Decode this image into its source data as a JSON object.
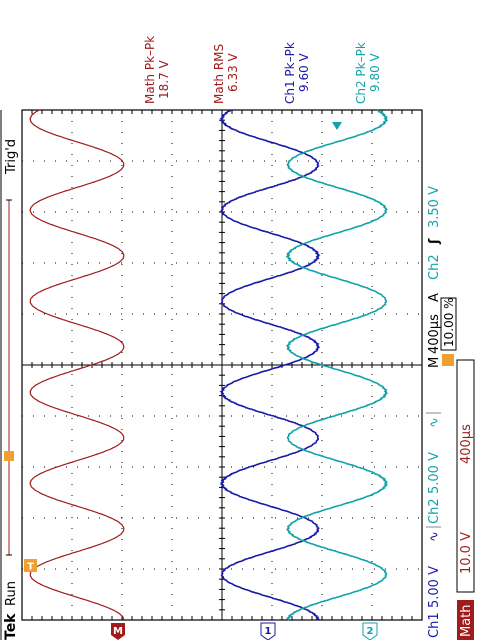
{
  "header": {
    "brand": "Tek",
    "run_state": "Run",
    "trigger_status": "Trig'd"
  },
  "measurements": [
    {
      "label": "Math Pk–Pk",
      "value": "18.7 V",
      "color": "#a01c1c"
    },
    {
      "label": "Math RMS",
      "value": "6.33 V",
      "color": "#a01c1c"
    },
    {
      "label": "Ch1 Pk–Pk",
      "value": "9.60 V",
      "color": "#1a1aa8"
    },
    {
      "label": "Ch2 Pk–Pk",
      "value": "9.80 V",
      "color": "#11a3a8"
    }
  ],
  "status_bar": {
    "ch1_label": "Ch1",
    "ch1_scale": "5.00 V",
    "ch2_label": "Ch2",
    "ch2_scale": "5.00 V",
    "coupling_symbol": "∿",
    "timebase_mode": "M",
    "timebase": "400µs",
    "trigger_mode": "A",
    "trigger_source": "Ch2",
    "trigger_slope": "ʃ",
    "trigger_level": "3.50 V",
    "trigger_position": "10.00 %"
  },
  "math_bar": {
    "label": "Math",
    "scale": "10.0 V",
    "timebase": "400µs"
  },
  "markers": {
    "math": "M",
    "ch1": "1",
    "ch2": "2",
    "trigger": "T"
  },
  "colors": {
    "math": "#a01c1c",
    "ch1": "#1a1aa8",
    "ch2": "#11a3a8",
    "trigger": "#f0a030",
    "grid": "#000000"
  },
  "chart_data": {
    "type": "line",
    "x_divisions": 10,
    "y_divisions": 8,
    "series": [
      {
        "name": "Math",
        "cycles": 5.6,
        "amplitude_div": 0.935,
        "offset_div": -2.9,
        "phase": 0.0
      },
      {
        "name": "Ch1",
        "cycles": 5.6,
        "amplitude_div": 0.96,
        "offset_div": 0.96,
        "phase": 0.0
      },
      {
        "name": "Ch2",
        "cycles": 5.6,
        "amplitude_div": 0.98,
        "offset_div": 2.3,
        "phase": 3.1416
      }
    ]
  }
}
